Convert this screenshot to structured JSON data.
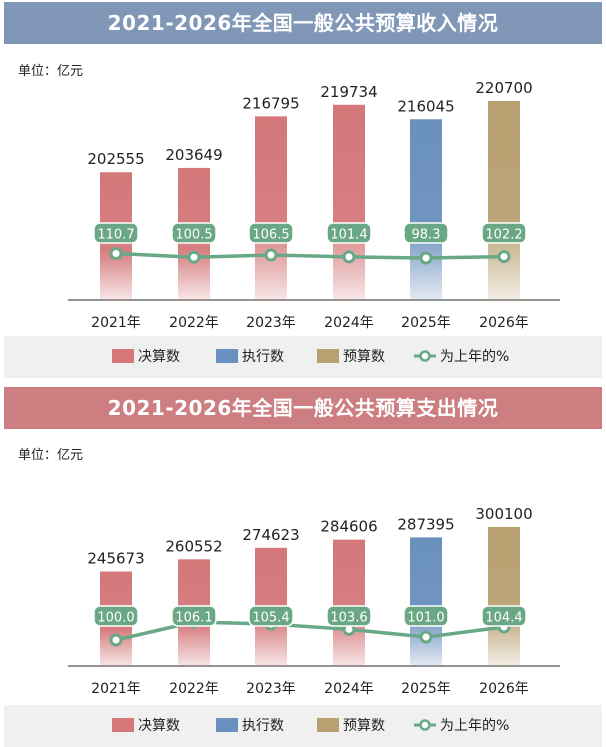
{
  "legend": {
    "actual": "决算数",
    "executed": "执行数",
    "budget": "预算数",
    "growth": "为上年的%"
  },
  "colors": {
    "actual": "#d4787a",
    "executed": "#6a90bd",
    "budget": "#b8a070",
    "line": "#68a887",
    "label_bg": "#6aa784"
  },
  "chart_data": [
    {
      "type": "bar",
      "title": "2021-2026年全国一般公共预算收入情况",
      "unit_label": "单位：亿元",
      "categories": [
        "2021年",
        "2022年",
        "2023年",
        "2024年",
        "2025年",
        "2026年"
      ],
      "series": [
        {
          "name": "决算数",
          "values": [
            202555,
            203649,
            216795,
            219734,
            null,
            null
          ]
        },
        {
          "name": "执行数",
          "values": [
            null,
            null,
            null,
            null,
            216045,
            null
          ]
        },
        {
          "name": "预算数",
          "values": [
            null,
            null,
            null,
            null,
            null,
            220700
          ]
        }
      ],
      "value_labels": [
        "202555",
        "203649",
        "216795",
        "219734",
        "216045",
        "220700"
      ],
      "kinds": [
        "actual",
        "actual",
        "actual",
        "actual",
        "executed",
        "budget"
      ],
      "growth": {
        "name": "为上年的%",
        "values": [
          110.7,
          100.5,
          106.5,
          101.4,
          98.3,
          102.2
        ],
        "labels": [
          "110.7",
          "100.5",
          "106.5",
          "101.4",
          "98.3",
          "102.2"
        ]
      }
    },
    {
      "type": "bar",
      "title": "2021-2026年全国一般公共预算支出情况",
      "unit_label": "单位：亿元",
      "categories": [
        "2021年",
        "2022年",
        "2023年",
        "2024年",
        "2025年",
        "2026年"
      ],
      "series": [
        {
          "name": "决算数",
          "values": [
            245673,
            260552,
            274623,
            284606,
            null,
            null
          ]
        },
        {
          "name": "执行数",
          "values": [
            null,
            null,
            null,
            null,
            287395,
            null
          ]
        },
        {
          "name": "预算数",
          "values": [
            null,
            null,
            null,
            null,
            null,
            300100
          ]
        }
      ],
      "value_labels": [
        "245673",
        "260552",
        "274623",
        "284606",
        "287395",
        "300100"
      ],
      "kinds": [
        "actual",
        "actual",
        "actual",
        "actual",
        "executed",
        "budget"
      ],
      "growth": {
        "name": "为上年的%",
        "values": [
          100.0,
          106.1,
          105.4,
          103.6,
          101.0,
          104.4
        ],
        "labels": [
          "100.0",
          "106.1",
          "105.4",
          "103.6",
          "101.0",
          "104.4"
        ]
      }
    }
  ]
}
